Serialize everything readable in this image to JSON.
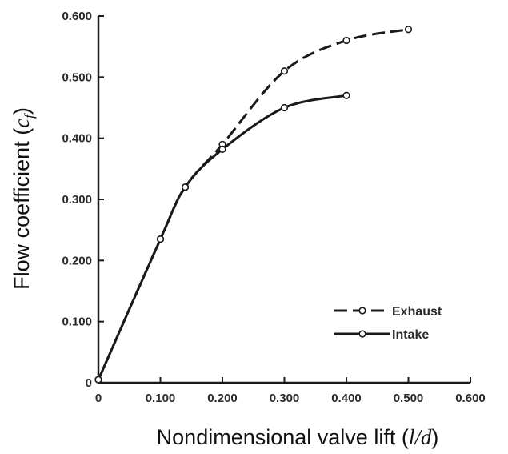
{
  "chart_data": {
    "type": "line",
    "title": "",
    "xlabel": {
      "prefix": "Nondimensional valve lift (",
      "variable": "l/d",
      "suffix": ")"
    },
    "ylabel": {
      "prefix": "Flow coefficient (",
      "variable": "c",
      "subscript": "f",
      "suffix": ")"
    },
    "xlim": [
      0,
      0.6
    ],
    "ylim": [
      0,
      0.6
    ],
    "x_ticks": [
      "0",
      "0.100",
      "0.200",
      "0.300",
      "0.400",
      "0.500",
      "0.600"
    ],
    "y_ticks": [
      "0",
      "0.100",
      "0.200",
      "0.300",
      "0.400",
      "0.500",
      "0.600"
    ],
    "grid": false,
    "legend_position": "bottom-right",
    "series": [
      {
        "name": "Exhaust",
        "style": "dashed",
        "color": "#1a1a1a",
        "x": [
          0,
          0.1,
          0.14,
          0.2,
          0.3,
          0.4,
          0.5
        ],
        "y": [
          0.005,
          0.235,
          0.32,
          0.39,
          0.51,
          0.56,
          0.578
        ]
      },
      {
        "name": "Intake",
        "style": "solid",
        "color": "#1a1a1a",
        "x": [
          0,
          0.1,
          0.14,
          0.2,
          0.3,
          0.4
        ],
        "y": [
          0.005,
          0.235,
          0.32,
          0.382,
          0.45,
          0.47
        ]
      }
    ]
  }
}
